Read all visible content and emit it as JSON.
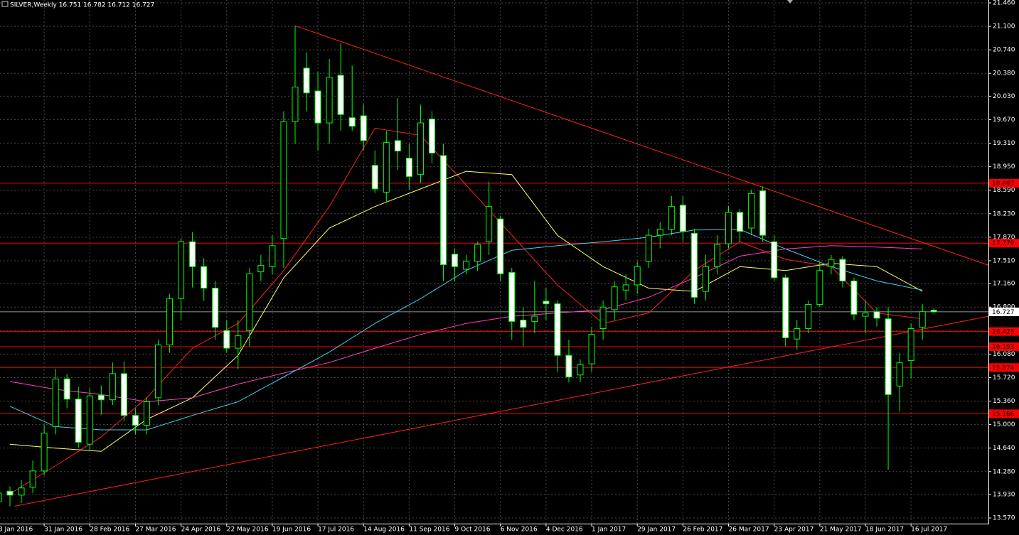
{
  "chart_data": {
    "type": "candlestick",
    "title": "SILVER,Weekly  16.751 16.782 16.712 16.727",
    "categories": [
      "3 Jan 2016",
      null,
      null,
      null,
      "31 Jan 2016",
      null,
      null,
      null,
      "28 Feb 2016",
      null,
      null,
      null,
      "27 Mar 2016",
      null,
      null,
      null,
      "24 Apr 2016",
      null,
      null,
      null,
      "22 May 2016",
      null,
      null,
      null,
      "19 Jun 2016",
      null,
      null,
      null,
      "17 Jul 2016",
      null,
      null,
      null,
      "14 Aug 2016",
      null,
      null,
      null,
      "11 Sep 2016",
      null,
      null,
      null,
      "9 Oct 2016",
      null,
      null,
      null,
      "6 Nov 2016",
      null,
      null,
      null,
      "4 Dec 2016",
      null,
      null,
      null,
      "1 Jan 2017",
      null,
      null,
      null,
      "29 Jan 2017",
      null,
      null,
      null,
      "26 Feb 2017",
      null,
      null,
      null,
      "26 Mar 2017",
      null,
      null,
      null,
      "23 Apr 2017",
      null,
      null,
      null,
      "21 May 2017",
      null,
      null,
      null,
      "18 Jun 2017",
      null,
      null,
      null,
      "16 Jul 2017",
      null,
      null
    ],
    "open": [
      13.82,
      13.98,
      13.92,
      14.04,
      14.29,
      14.97,
      15.7,
      15.39,
      14.7,
      15.45,
      15.38,
      15.78,
      15.14,
      14.99,
      15.41,
      16.22,
      16.93,
      17.8,
      17.42,
      17.09,
      16.44,
      16.17,
      16.44,
      17.34,
      17.42,
      17.85,
      19.64,
      20.46,
      20.11,
      19.62,
      20.35,
      19.7,
      19.73,
      18.97,
      18.56,
      19.35,
      19.08,
      18.83,
      19.68,
      19.12,
      17.61,
      17.38,
      17.5,
      17.8,
      18.15,
      17.33,
      16.6,
      16.58,
      16.89,
      16.85,
      16.06,
      15.76,
      15.93,
      16.47,
      16.76,
      17.06,
      17.14,
      17.5,
      17.9,
      17.99,
      18.36,
      17.93,
      17.04,
      17.42,
      17.77,
      18.25,
      18.01,
      18.58,
      17.8,
      17.25,
      16.31,
      16.47,
      16.84,
      17.42,
      17.53,
      17.2,
      16.66,
      16.73,
      16.62,
      15.59,
      15.98,
      16.49,
      16.751
    ],
    "high": [
      14.05,
      14.05,
      14.15,
      14.45,
      15.0,
      15.85,
      15.78,
      15.58,
      15.55,
      15.6,
      15.95,
      15.97,
      15.25,
      15.42,
      16.3,
      17.0,
      17.85,
      17.95,
      17.55,
      17.2,
      16.6,
      16.6,
      17.4,
      17.6,
      17.9,
      19.8,
      21.11,
      20.7,
      20.4,
      20.6,
      20.84,
      20.5,
      19.9,
      19.2,
      19.5,
      20.0,
      19.3,
      19.9,
      19.8,
      19.3,
      17.7,
      17.6,
      17.8,
      18.72,
      18.2,
      17.4,
      16.8,
      17.2,
      17.1,
      16.9,
      16.3,
      16.0,
      16.5,
      16.9,
      17.2,
      17.3,
      17.5,
      18.0,
      18.1,
      18.5,
      18.5,
      18.0,
      17.6,
      17.9,
      18.35,
      18.3,
      18.6,
      18.65,
      17.9,
      17.3,
      16.6,
      16.9,
      17.5,
      17.6,
      17.58,
      17.25,
      16.9,
      16.8,
      16.8,
      16.1,
      16.55,
      16.85,
      16.782
    ],
    "low": [
      13.65,
      13.75,
      13.8,
      13.95,
      14.22,
      14.85,
      15.25,
      14.65,
      14.6,
      15.15,
      15.3,
      15.05,
      14.85,
      14.85,
      15.3,
      16.1,
      16.6,
      17.1,
      16.9,
      16.3,
      16.1,
      15.85,
      16.2,
      17.2,
      17.3,
      17.4,
      19.3,
      19.8,
      19.2,
      19.3,
      19.5,
      19.5,
      19.2,
      18.55,
      18.4,
      18.9,
      18.6,
      18.7,
      19.0,
      17.2,
      17.2,
      17.3,
      17.35,
      17.6,
      17.2,
      16.3,
      16.2,
      16.4,
      16.6,
      15.8,
      15.65,
      15.65,
      15.8,
      16.3,
      16.6,
      16.9,
      17.0,
      17.4,
      17.7,
      17.9,
      17.8,
      16.85,
      16.9,
      17.3,
      17.7,
      17.8,
      17.9,
      17.8,
      17.2,
      16.2,
      16.15,
      16.4,
      16.8,
      17.3,
      17.1,
      16.6,
      16.4,
      16.5,
      14.31,
      15.2,
      15.7,
      16.3,
      16.712
    ],
    "close": [
      13.95,
      13.92,
      14.03,
      14.29,
      14.87,
      15.7,
      15.39,
      14.73,
      15.44,
      15.38,
      15.78,
      15.14,
      14.99,
      15.35,
      16.22,
      16.93,
      17.8,
      17.42,
      17.09,
      16.49,
      16.17,
      16.36,
      17.31,
      17.44,
      17.74,
      19.64,
      20.17,
      20.08,
      19.62,
      20.32,
      19.75,
      19.57,
      19.35,
      18.61,
      19.32,
      19.19,
      18.8,
      19.62,
      19.16,
      17.45,
      17.42,
      17.5,
      17.76,
      18.34,
      17.31,
      16.58,
      16.49,
      16.66,
      16.85,
      16.06,
      15.73,
      15.92,
      16.38,
      16.8,
      17.11,
      17.14,
      17.42,
      17.9,
      17.99,
      18.34,
      17.96,
      16.95,
      17.42,
      17.76,
      18.25,
      17.96,
      18.54,
      17.9,
      17.25,
      16.33,
      16.47,
      16.84,
      17.36,
      17.53,
      17.2,
      16.69,
      16.71,
      16.63,
      15.46,
      15.95,
      16.47,
      16.73,
      16.727
    ],
    "bull_color": "#000000",
    "bear_color": "#ffffff",
    "wick_color": "#00ff00",
    "moving_averages": [
      {
        "color": "#ff2020",
        "x": [
          1,
          5,
          9,
          13,
          17,
          21,
          25,
          29,
          33,
          37,
          41,
          45,
          49,
          53,
          57,
          61,
          65,
          69,
          73,
          77,
          81
        ],
        "values": [
          13.94,
          14.37,
          14.81,
          15.41,
          16.17,
          16.55,
          17.36,
          18.34,
          19.54,
          19.43,
          18.67,
          17.9,
          17.14,
          16.55,
          16.71,
          17.36,
          17.8,
          17.53,
          17.42,
          16.71,
          16.62
        ]
      },
      {
        "color": "#ffff66",
        "x": [
          1,
          5,
          9,
          13,
          17,
          21,
          25,
          29,
          33,
          37,
          41,
          45,
          49,
          53,
          57,
          61,
          65,
          69,
          73,
          77,
          81
        ],
        "values": [
          14.7,
          14.64,
          14.59,
          15.08,
          15.41,
          16.06,
          17.25,
          18.01,
          18.34,
          18.61,
          18.88,
          18.83,
          17.9,
          17.42,
          17.09,
          17.04,
          17.42,
          17.36,
          17.47,
          17.42,
          17.04
        ]
      },
      {
        "color": "#40d0f0",
        "x": [
          1,
          5,
          9,
          13,
          17,
          21,
          25,
          29,
          33,
          37,
          41,
          45,
          49,
          53,
          57,
          61,
          65,
          69,
          73,
          77,
          81
        ],
        "values": [
          15.28,
          14.97,
          14.92,
          14.92,
          15.14,
          15.35,
          15.73,
          16.11,
          16.55,
          16.93,
          17.36,
          17.67,
          17.74,
          17.8,
          17.87,
          17.98,
          17.99,
          17.69,
          17.42,
          17.2,
          17.06
        ]
      },
      {
        "color": "#ff40c0",
        "x": [
          1,
          5,
          9,
          13,
          17,
          21,
          25,
          29,
          33,
          37,
          41,
          45,
          49,
          53,
          57,
          61,
          65,
          69,
          73,
          77,
          81
        ],
        "values": [
          15.66,
          15.54,
          15.46,
          15.35,
          15.41,
          15.62,
          15.79,
          15.95,
          16.17,
          16.38,
          16.55,
          16.66,
          16.71,
          16.76,
          16.95,
          17.25,
          17.58,
          17.69,
          17.74,
          17.72,
          17.69
        ]
      }
    ],
    "trendlines": [
      {
        "color": "#ff2020",
        "x": [
          1.4,
          86.8
        ],
        "values": [
          13.75,
          16.66
        ]
      },
      {
        "color": "#ff2020",
        "x": [
          26,
          86.8
        ],
        "values": [
          21.11,
          17.44
        ]
      }
    ],
    "levels": [
      {
        "value": 18.697,
        "color": "#ff0000"
      },
      {
        "value": 17.779,
        "color": "#ff0000"
      },
      {
        "value": 16.425,
        "color": "#ff0000"
      },
      {
        "value": 16.193,
        "color": "#ff0000"
      },
      {
        "value": 15.874,
        "color": "#ff0000"
      },
      {
        "value": 15.166,
        "color": "#ff0000"
      }
    ],
    "current_price": {
      "value": 16.727,
      "color": "#c0c0c0"
    },
    "ylim": [
      13.57,
      21.46
    ],
    "yticks": [
      {
        "value": 13.57,
        "label": "13.570"
      },
      {
        "value": 13.93,
        "label": "13.930"
      },
      {
        "value": 14.28,
        "label": "14.280"
      },
      {
        "value": 14.64,
        "label": "14.640"
      },
      {
        "value": 15.0,
        "label": "15.000"
      },
      {
        "value": 15.36,
        "label": "15.360"
      },
      {
        "value": 15.72,
        "label": "15.720"
      },
      {
        "value": 16.08,
        "label": "16.080"
      },
      {
        "value": 16.44,
        "label": "16.440"
      },
      {
        "value": 16.8,
        "label": "16.800"
      },
      {
        "value": 17.16,
        "label": "17.160"
      },
      {
        "value": 17.51,
        "label": "17.510"
      },
      {
        "value": 17.87,
        "label": "17.870"
      },
      {
        "value": 18.23,
        "label": "18.230"
      },
      {
        "value": 18.59,
        "label": "18.590"
      },
      {
        "value": 18.95,
        "label": "18.950"
      },
      {
        "value": 19.31,
        "label": "19.310"
      },
      {
        "value": 19.67,
        "label": "19.670"
      },
      {
        "value": 20.03,
        "label": "20.030"
      },
      {
        "value": 20.38,
        "label": "20.380"
      },
      {
        "value": 20.74,
        "label": "20.740"
      },
      {
        "value": 21.1,
        "label": "21.100"
      },
      {
        "value": 21.46,
        "label": "21.460"
      }
    ],
    "grid": true,
    "grid_color": "#4a4a4a"
  }
}
